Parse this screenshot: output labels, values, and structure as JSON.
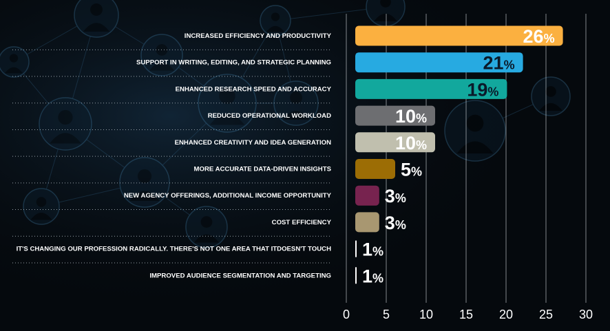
{
  "chart_data": {
    "type": "bar",
    "orientation": "horizontal",
    "categories": [
      "INCREASED EFFICIENCY AND PRODUCTIVITY",
      "SUPPORT IN WRITING, EDITING, AND STRATEGIC PLANNING",
      "ENHANCED RESEARCH SPEED AND ACCURACY",
      "REDUCED OPERATIONAL WORKLOAD",
      "ENHANCED CREATIVITY AND IDEA GENERATION",
      "MORE ACCURATE DATA-DRIVEN INSIGHTS",
      "NEW AGENCY OFFERINGS, ADDITIONAL INCOME OPPORTUNITY",
      "COST EFFICIENCY",
      "IT'S CHANGING OUR PROFESSION RADICALLY.  THERE'S NOT ONE AREA THAT ITDOESN'T TOUCH",
      "IMPROVED AUDIENCE SEGMENTATION AND TARGETING"
    ],
    "values": [
      26,
      21,
      19,
      10,
      10,
      5,
      3,
      3,
      1,
      1
    ],
    "value_labels": [
      "26",
      "21",
      "19",
      "10",
      "10",
      "5",
      "3",
      "3",
      "1",
      "1"
    ],
    "value_suffix": "%",
    "colors": [
      "#fbb040",
      "#27aae1",
      "#12a89d",
      "#6d6e71",
      "#c0bfae",
      "#9c6d05",
      "#77234f",
      "#a89771",
      "#ffffff",
      "#ffffff"
    ],
    "label_colors": [
      "#ffffff",
      "#0a1a2a",
      "#0a1a2a",
      "#ffffff",
      "#ffffff",
      "#ffffff",
      "#ffffff",
      "#ffffff",
      "#ffffff",
      "#ffffff"
    ],
    "xlim": [
      0,
      30
    ],
    "xticks": [
      "0",
      "5",
      "10",
      "15",
      "20",
      "25",
      "30"
    ],
    "grid": true,
    "title": "",
    "xlabel": "",
    "ylabel": ""
  }
}
